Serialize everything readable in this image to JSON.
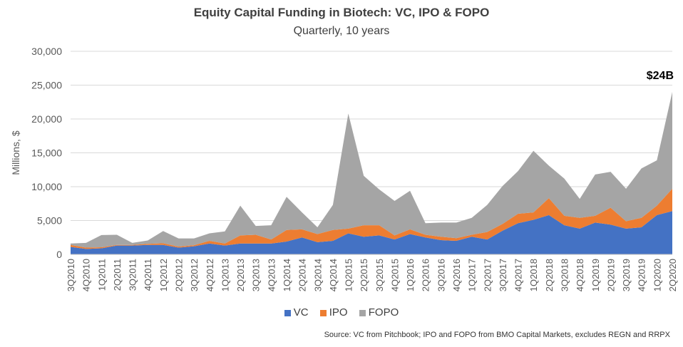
{
  "header": {
    "title": "Equity Capital Funding in Biotech: VC, IPO & FOPO",
    "subtitle": "Quarterly, 10 years"
  },
  "footer": {
    "source": "Source: VC from Pitchbook; IPO and FOPO from BMO Capital Markets, excludes REGN and RRPX"
  },
  "annotation": {
    "label": "$24B"
  },
  "colors": {
    "VC": "#4472C4",
    "IPO": "#ED7D31",
    "FOPO": "#A5A5A5",
    "grid": "#D9D9D9",
    "text": "#595959"
  },
  "chart_data": {
    "type": "area",
    "stacked": true,
    "title": "Equity Capital Funding in Biotech: VC, IPO & FOPO",
    "subtitle": "Quarterly, 10 years",
    "ylabel": "Millions, $",
    "xlabel": "",
    "ylim": [
      0,
      30000
    ],
    "yticks": [
      0,
      5000,
      10000,
      15000,
      20000,
      25000,
      30000
    ],
    "ytick_labels": [
      "0",
      "5,000",
      "10,000",
      "15,000",
      "20,000",
      "25,000",
      "30,000"
    ],
    "grid": true,
    "legend_position": "bottom",
    "x": [
      "3Q2010",
      "4Q2010",
      "1Q2011",
      "2Q2011",
      "3Q2011",
      "4Q2011",
      "1Q2012",
      "2Q2012",
      "3Q2012",
      "4Q2012",
      "1Q2013",
      "2Q2013",
      "3Q2013",
      "4Q2013",
      "1Q2014",
      "2Q2014",
      "3Q2014",
      "4Q2014",
      "1Q2015",
      "2Q2015",
      "3Q2015",
      "4Q2015",
      "1Q2016",
      "2Q2016",
      "3Q2016",
      "4Q2016",
      "1Q2017",
      "2Q2017",
      "3Q2017",
      "4Q2017",
      "1Q2018",
      "2Q2018",
      "3Q2018",
      "4Q2018",
      "1Q2019",
      "2Q2019",
      "3Q2019",
      "4Q2019",
      "1Q2020",
      "2Q2020"
    ],
    "series": [
      {
        "name": "VC",
        "values": [
          1100,
          800,
          900,
          1300,
          1300,
          1400,
          1400,
          1000,
          1200,
          1600,
          1300,
          1600,
          1600,
          1600,
          1900,
          2500,
          1800,
          2000,
          3100,
          2600,
          2800,
          2200,
          3000,
          2500,
          2100,
          2000,
          2600,
          2200,
          3500,
          4600,
          5100,
          5800,
          4300,
          3800,
          4700,
          4400,
          3800,
          4000,
          5800,
          6400
        ]
      },
      {
        "name": "IPO",
        "values": [
          300,
          200,
          150,
          100,
          100,
          150,
          250,
          150,
          150,
          400,
          300,
          1200,
          1300,
          600,
          1700,
          1200,
          1200,
          1600,
          700,
          1700,
          1500,
          600,
          700,
          400,
          500,
          400,
          300,
          1100,
          1000,
          1400,
          1100,
          2500,
          1400,
          1600,
          1000,
          2500,
          1100,
          1400,
          1400,
          3300
        ]
      },
      {
        "name": "FOPO",
        "values": [
          200,
          700,
          1800,
          1500,
          300,
          500,
          1800,
          1200,
          1000,
          1100,
          1800,
          4400,
          1300,
          2100,
          4900,
          2500,
          1000,
          3700,
          17000,
          7300,
          5300,
          5100,
          5700,
          1700,
          2100,
          2300,
          2500,
          4000,
          5600,
          6300,
          9100,
          4800,
          5500,
          2800,
          6100,
          5300,
          4800,
          7300,
          6700,
          14300
        ]
      }
    ]
  }
}
